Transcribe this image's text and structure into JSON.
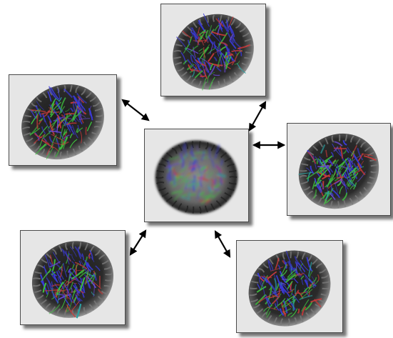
{
  "diagram": {
    "center": {
      "name": "atlas-brain",
      "icon": "brain-tractography-blurred"
    },
    "satellites": [
      {
        "name": "subject-top",
        "icon": "brain-tractography"
      },
      {
        "name": "subject-left",
        "icon": "brain-tractography"
      },
      {
        "name": "subject-right",
        "icon": "brain-tractography"
      },
      {
        "name": "subject-bottom-left",
        "icon": "brain-tractography"
      },
      {
        "name": "subject-bottom-right",
        "icon": "brain-tractography"
      }
    ],
    "connector": "bidirectional-arrow",
    "colors": {
      "background": "#ffffff",
      "panel": "#e6e6e6",
      "fiber_blue": "#3a3ad8",
      "fiber_green": "#3fbf3f",
      "fiber_red": "#c83a3a",
      "cortex": "#3a3a3a",
      "arrow": "#000000"
    }
  }
}
